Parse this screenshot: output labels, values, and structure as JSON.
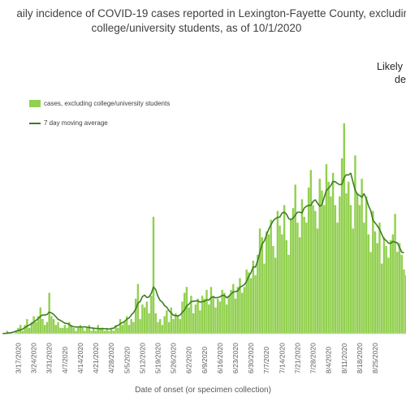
{
  "chart_data": {
    "type": "bar",
    "title_line1": "aily incidence of COVID-19 cases reported in Lexington-Fayette County, excluding",
    "title_line2": "college/university students, as of 10/1/2020",
    "xlabel": "Date of onset (or specimen collection)",
    "annotation_line1": "Likely",
    "annotation_line2": "de",
    "legend": {
      "placement": "top-left"
    },
    "series": [
      {
        "name": "cases, excluding college/university students",
        "kind": "bar",
        "color": "#92d050"
      },
      {
        "name": "7 day moving average",
        "kind": "line",
        "color": "#3c7d22"
      }
    ],
    "start_date": "3/10/2020",
    "x_tick_labels": [
      "3/17/2020",
      "3/24/2020",
      "3/31/2020",
      "4/7/2020",
      "4/14/2020",
      "4/21/2020",
      "4/28/2020",
      "5/5/2020",
      "5/12/2020",
      "5/19/2020",
      "5/26/2020",
      "6/2/2020",
      "6/9/2020",
      "6/16/2020",
      "6/23/2020",
      "6/30/2020",
      "7/7/2020",
      "7/14/2020",
      "7/21/2020",
      "7/28/2020",
      "8/4/2020",
      "8/11/2020",
      "8/18/2020",
      "8/25/2020"
    ],
    "x_tick_day_offsets": [
      7,
      14,
      21,
      28,
      35,
      42,
      49,
      56,
      63,
      70,
      77,
      84,
      91,
      98,
      105,
      112,
      119,
      126,
      133,
      140,
      147,
      154,
      161,
      168
    ],
    "gridlines": false,
    "values": [
      0,
      0,
      1,
      0,
      0,
      0,
      1,
      2,
      3,
      1,
      3,
      5,
      2,
      4,
      6,
      4,
      6,
      9,
      5,
      3,
      4,
      14,
      6,
      5,
      3,
      4,
      2,
      2,
      3,
      2,
      4,
      3,
      2,
      1,
      2,
      3,
      2,
      1,
      2,
      3,
      1,
      2,
      1,
      3,
      2,
      2,
      1,
      2,
      1,
      2,
      1,
      3,
      2,
      5,
      3,
      4,
      6,
      3,
      5,
      4,
      12,
      17,
      5,
      10,
      9,
      11,
      7,
      13,
      40,
      7,
      4,
      5,
      3,
      6,
      8,
      4,
      9,
      5,
      7,
      6,
      5,
      11,
      14,
      16,
      9,
      13,
      7,
      10,
      12,
      8,
      13,
      12,
      15,
      10,
      16,
      13,
      9,
      12,
      11,
      15,
      14,
      10,
      13,
      15,
      17,
      12,
      16,
      19,
      14,
      16,
      22,
      21,
      19,
      25,
      20,
      27,
      36,
      33,
      24,
      35,
      34,
      39,
      30,
      26,
      42,
      37,
      34,
      44,
      32,
      27,
      39,
      43,
      51,
      38,
      33,
      46,
      40,
      38,
      50,
      56,
      44,
      42,
      36,
      53,
      49,
      44,
      58,
      52,
      47,
      55,
      44,
      38,
      47,
      60,
      72,
      48,
      52,
      44,
      36,
      61,
      48,
      44,
      53,
      38,
      47,
      34,
      28,
      42,
      35,
      31,
      38,
      24,
      33,
      30,
      26,
      32,
      34,
      41,
      28,
      31,
      27,
      22,
      20
    ],
    "moving_average": [
      0.1,
      0.1,
      0.2,
      0.3,
      0.4,
      0.6,
      0.9,
      1.1,
      1.3,
      1.6,
      2.1,
      2.6,
      3.0,
      3.4,
      4.0,
      4.6,
      5.2,
      6.0,
      6.4,
      6.4,
      6.6,
      7.4,
      7.1,
      6.6,
      5.8,
      4.9,
      4.6,
      4.1,
      3.6,
      3.5,
      3.2,
      2.6,
      2.4,
      2.3,
      2.3,
      2.3,
      2.3,
      2.4,
      2.2,
      2.1,
      2.0,
      1.9,
      1.8,
      1.8,
      1.7,
      1.8,
      1.7,
      1.7,
      1.6,
      1.8,
      1.9,
      2.5,
      2.8,
      3.4,
      3.8,
      4.2,
      5.0,
      5.4,
      6.4,
      7.2,
      8.4,
      10.5,
      11.0,
      12.7,
      13.2,
      12.4,
      12.6,
      13.8,
      16.0,
      15.1,
      12.8,
      11.4,
      10.8,
      9.6,
      9.1,
      7.9,
      7.1,
      6.3,
      6.2,
      6.1,
      6.4,
      7.3,
      8.1,
      9.5,
      10.1,
      11.0,
      11.1,
      11.2,
      11.3,
      10.8,
      11.0,
      11.1,
      11.6,
      11.5,
      12.4,
      12.6,
      12.3,
      12.4,
      12.6,
      13.1,
      13.1,
      12.3,
      12.8,
      13.6,
      14.3,
      14.4,
      14.6,
      15.9,
      16.3,
      16.8,
      17.9,
      19.7,
      20.9,
      22.9,
      22.8,
      24.9,
      27.9,
      30.7,
      31.7,
      33.8,
      35.8,
      37.3,
      38.6,
      39.4,
      39.8,
      39.9,
      41.3,
      41.6,
      40.9,
      39.4,
      39.0,
      39.6,
      40.6,
      41.6,
      41.6,
      41.3,
      43.0,
      43.6,
      43.9,
      43.9,
      45.3,
      45.8,
      44.7,
      43.6,
      44.1,
      46.7,
      49.0,
      49.8,
      50.7,
      52.1,
      52.0,
      51.4,
      51.0,
      51.1,
      53.4,
      54.4,
      54.3,
      54.9,
      51.9,
      49.1,
      47.7,
      47.3,
      46.7,
      47.9,
      46.2,
      43.8,
      42.1,
      38.9,
      37.9,
      36.9,
      35.7,
      34.0,
      32.4,
      31.9,
      31.0,
      30.9,
      31.6,
      31.3,
      31.1,
      29.6,
      27.9,
      27.7
    ]
  }
}
